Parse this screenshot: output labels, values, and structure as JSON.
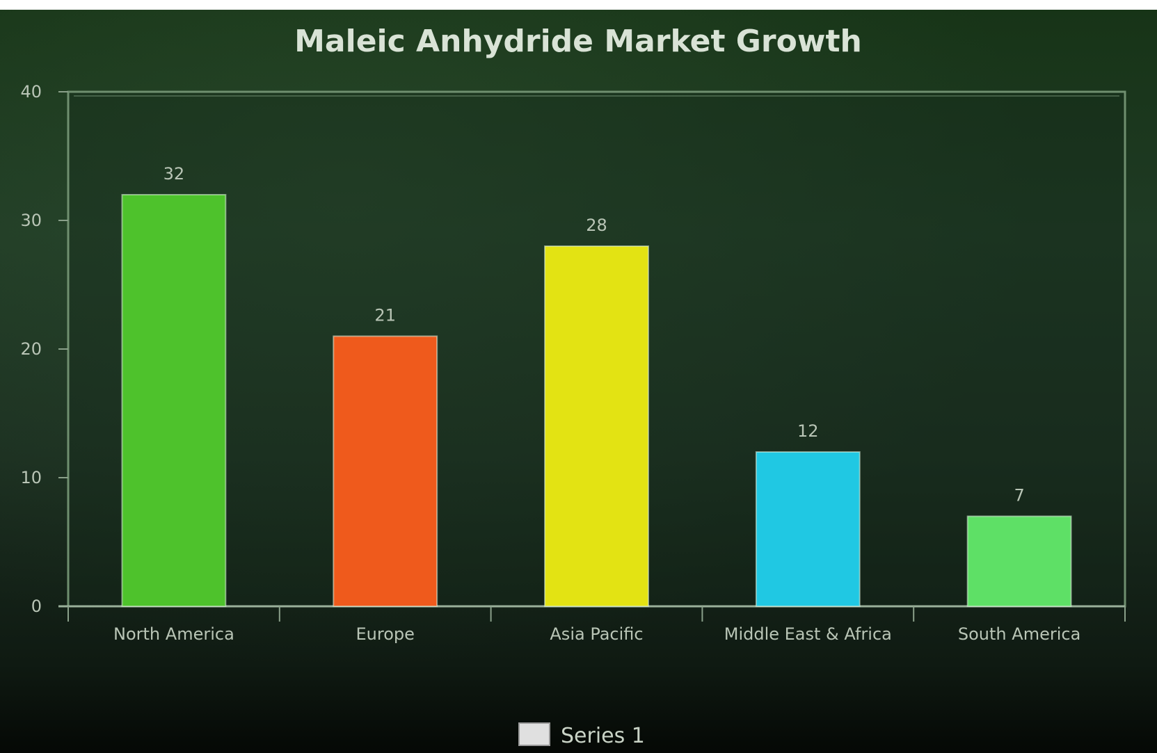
{
  "chart_data": {
    "type": "bar",
    "title": "Maleic Anhydride Market Growth",
    "categories": [
      "North America",
      "Europe",
      "Asia Pacific",
      "Middle East & Africa",
      "South America"
    ],
    "series": [
      {
        "name": "Series 1",
        "values": [
          32,
          21,
          28,
          12,
          7
        ],
        "colors": [
          "#4ec22c",
          "#ef5a1c",
          "#e3e313",
          "#20c8e3",
          "#5ee066"
        ]
      }
    ],
    "ylim": [
      0,
      40
    ],
    "yticks": [
      0,
      10,
      20,
      30,
      40
    ],
    "ytick_labels": [
      "0",
      "10",
      "20",
      "30",
      "40"
    ],
    "xlabel": "",
    "ylabel": "",
    "grid": false,
    "legend": {
      "position": "bottom",
      "label": "Series 1",
      "swatch_color": "#e0e0e0"
    }
  }
}
